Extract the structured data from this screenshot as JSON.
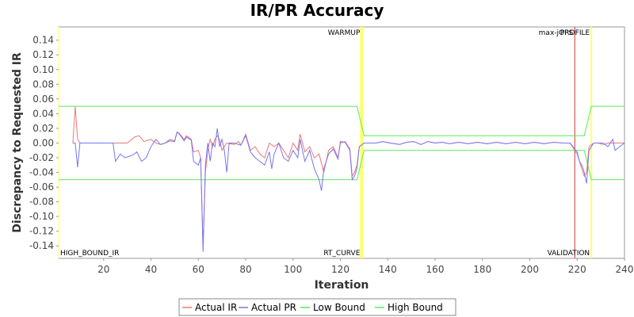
{
  "chart_data": {
    "type": "line",
    "title": "IR/PR Accuracy",
    "xlabel": "Iteration",
    "ylabel": "Discrepancy to Requested IR",
    "xlim": [
      1,
      240
    ],
    "ylim": [
      -0.157,
      0.158
    ],
    "x_ticks": [
      20,
      40,
      60,
      80,
      100,
      120,
      140,
      160,
      180,
      200,
      220,
      240
    ],
    "y_ticks": [
      0.14,
      0.12,
      0.1,
      0.08,
      0.06,
      0.04,
      0.02,
      0.0,
      -0.02,
      -0.04,
      -0.06,
      -0.08,
      -0.1,
      -0.12,
      -0.14
    ],
    "y_tick_labels": [
      "0.14",
      "0.12",
      "0.10",
      "0.08",
      "0.06",
      "0.04",
      "0.02",
      "0.00",
      "-0.02",
      "-0.04",
      "-0.06",
      "-0.08",
      "-0.10",
      "-0.12",
      "-0.14"
    ],
    "grid": "off",
    "legend_position": "bottom",
    "series": [
      {
        "name": "Actual IR",
        "color": "#ee7777",
        "points": [
          [
            7,
            0
          ],
          [
            8,
            0.05
          ],
          [
            9,
            0.005
          ],
          [
            10,
            0
          ],
          [
            24,
            0
          ],
          [
            25,
            0
          ],
          [
            30,
            0
          ],
          [
            33,
            0.008
          ],
          [
            35,
            0.01
          ],
          [
            37,
            0.002
          ],
          [
            40,
            0.005
          ],
          [
            42,
            0
          ],
          [
            44,
            -0.002
          ],
          [
            46,
            0
          ],
          [
            48,
            0.005
          ],
          [
            50,
            0.003
          ],
          [
            51,
            0.015
          ],
          [
            52,
            0.013
          ],
          [
            54,
            0.005
          ],
          [
            55,
            0.01
          ],
          [
            57,
            0.005
          ],
          [
            58,
            -0.012
          ],
          [
            60,
            -0.01
          ],
          [
            61,
            -0.02
          ],
          [
            62,
            -0.14
          ],
          [
            63,
            -0.04
          ],
          [
            64,
            -0.01
          ],
          [
            65,
            0.005
          ],
          [
            66,
            -0.005
          ],
          [
            67,
            0.005
          ],
          [
            68,
            0.01
          ],
          [
            69,
            0.005
          ],
          [
            70,
            -0.01
          ],
          [
            72,
            0
          ],
          [
            75,
            -0.002
          ],
          [
            77,
            0.002
          ],
          [
            78,
            -0.003
          ],
          [
            80,
            0.012
          ],
          [
            82,
            -0.01
          ],
          [
            84,
            -0.005
          ],
          [
            86,
            -0.015
          ],
          [
            88,
            -0.02
          ],
          [
            90,
            0
          ],
          [
            92,
            -0.005
          ],
          [
            94,
            0
          ],
          [
            96,
            -0.01
          ],
          [
            98,
            -0.02
          ],
          [
            100,
            0
          ],
          [
            102,
            -0.01
          ],
          [
            103,
            0.012
          ],
          [
            105,
            -0.012
          ],
          [
            107,
            -0.005
          ],
          [
            109,
            -0.02
          ],
          [
            111,
            -0.015
          ],
          [
            113,
            -0.04
          ],
          [
            115,
            -0.01
          ],
          [
            117,
            -0.005
          ],
          [
            119,
            -0.02
          ],
          [
            120,
            0
          ],
          [
            122,
            0.002
          ],
          [
            124,
            -0.008
          ],
          [
            125,
            -0.045
          ],
          [
            126,
            -0.04
          ],
          [
            127,
            -0.03
          ],
          [
            128,
            -0.005
          ],
          [
            130,
            0
          ],
          [
            135,
            0
          ],
          [
            138,
            0.002
          ],
          [
            141,
            0
          ],
          [
            145,
            -0.002
          ],
          [
            148,
            0.001
          ],
          [
            151,
            0.002
          ],
          [
            154,
            -0.002
          ],
          [
            157,
            0.002
          ],
          [
            160,
            0
          ],
          [
            163,
            0.001
          ],
          [
            166,
            -0.001
          ],
          [
            170,
            0.001
          ],
          [
            174,
            -0.001
          ],
          [
            178,
            0.001
          ],
          [
            182,
            -0.001
          ],
          [
            186,
            0.001
          ],
          [
            190,
            -0.001
          ],
          [
            194,
            0.001
          ],
          [
            198,
            -0.001
          ],
          [
            202,
            0.001
          ],
          [
            206,
            -0.001
          ],
          [
            210,
            0.001
          ],
          [
            214,
            0
          ],
          [
            217,
            0
          ],
          [
            219,
            -0.01
          ],
          [
            220,
            -0.015
          ],
          [
            221,
            -0.025
          ],
          [
            222,
            -0.035
          ],
          [
            223,
            -0.045
          ],
          [
            224,
            -0.04
          ],
          [
            225,
            -0.005
          ],
          [
            227,
            0
          ],
          [
            229,
            0
          ],
          [
            231,
            -0.002
          ],
          [
            233,
            0
          ],
          [
            235,
            0
          ],
          [
            237,
            0
          ],
          [
            239,
            0
          ],
          [
            240,
            0
          ]
        ]
      },
      {
        "name": "Actual PR",
        "color": "#7777ee",
        "points": [
          [
            7,
            0
          ],
          [
            8,
            0
          ],
          [
            9,
            -0.033
          ],
          [
            10,
            0
          ],
          [
            24,
            0
          ],
          [
            25,
            -0.025
          ],
          [
            27,
            -0.015
          ],
          [
            29,
            -0.02
          ],
          [
            31,
            -0.018
          ],
          [
            33,
            -0.015
          ],
          [
            34,
            -0.012
          ],
          [
            36,
            -0.025
          ],
          [
            38,
            -0.02
          ],
          [
            40,
            -0.005
          ],
          [
            42,
            0.005
          ],
          [
            44,
            -0.002
          ],
          [
            46,
            0
          ],
          [
            48,
            0.003
          ],
          [
            50,
            0.002
          ],
          [
            51,
            0.015
          ],
          [
            52,
            0.012
          ],
          [
            54,
            0.003
          ],
          [
            55,
            0.008
          ],
          [
            57,
            0.004
          ],
          [
            58,
            -0.025
          ],
          [
            60,
            -0.03
          ],
          [
            61,
            -0.02
          ],
          [
            62,
            -0.148
          ],
          [
            63,
            -0.03
          ],
          [
            64,
            0
          ],
          [
            65,
            -0.025
          ],
          [
            66,
            0
          ],
          [
            67,
            -0.005
          ],
          [
            68,
            0.02
          ],
          [
            69,
            -0.005
          ],
          [
            70,
            0.005
          ],
          [
            71,
            -0.01
          ],
          [
            72,
            -0.04
          ],
          [
            73,
            0
          ],
          [
            75,
            0
          ],
          [
            77,
            -0.002
          ],
          [
            78,
            -0.003
          ],
          [
            80,
            0.01
          ],
          [
            82,
            -0.012
          ],
          [
            84,
            -0.02
          ],
          [
            86,
            -0.025
          ],
          [
            88,
            -0.03
          ],
          [
            90,
            -0.012
          ],
          [
            91,
            -0.035
          ],
          [
            92,
            -0.015
          ],
          [
            94,
            0
          ],
          [
            96,
            -0.02
          ],
          [
            98,
            -0.025
          ],
          [
            100,
            -0.01
          ],
          [
            102,
            -0.02
          ],
          [
            103,
            0.005
          ],
          [
            105,
            -0.025
          ],
          [
            107,
            -0.01
          ],
          [
            109,
            -0.035
          ],
          [
            111,
            -0.05
          ],
          [
            112,
            -0.065
          ],
          [
            113,
            -0.035
          ],
          [
            115,
            -0.015
          ],
          [
            117,
            -0.008
          ],
          [
            119,
            -0.022
          ],
          [
            120,
            0.002
          ],
          [
            122,
            0.001
          ],
          [
            124,
            -0.01
          ],
          [
            125,
            -0.05
          ],
          [
            126,
            -0.045
          ],
          [
            127,
            -0.035
          ],
          [
            128,
            -0.005
          ],
          [
            130,
            0
          ],
          [
            135,
            0
          ],
          [
            138,
            0.002
          ],
          [
            141,
            0
          ],
          [
            145,
            -0.002
          ],
          [
            148,
            0.001
          ],
          [
            151,
            0.002
          ],
          [
            154,
            -0.002
          ],
          [
            157,
            0.002
          ],
          [
            160,
            0
          ],
          [
            163,
            0.001
          ],
          [
            166,
            -0.001
          ],
          [
            170,
            0.001
          ],
          [
            174,
            -0.001
          ],
          [
            178,
            0.001
          ],
          [
            182,
            -0.001
          ],
          [
            186,
            0.001
          ],
          [
            190,
            -0.001
          ],
          [
            194,
            0.001
          ],
          [
            198,
            -0.001
          ],
          [
            202,
            0.001
          ],
          [
            206,
            -0.001
          ],
          [
            210,
            0.001
          ],
          [
            214,
            0
          ],
          [
            217,
            0
          ],
          [
            219,
            -0.008
          ],
          [
            220,
            -0.012
          ],
          [
            221,
            -0.025
          ],
          [
            222,
            -0.03
          ],
          [
            223,
            -0.04
          ],
          [
            224,
            -0.055
          ],
          [
            225,
            -0.01
          ],
          [
            227,
            0
          ],
          [
            229,
            0
          ],
          [
            231,
            0
          ],
          [
            233,
            -0.005
          ],
          [
            235,
            0.005
          ],
          [
            236,
            -0.01
          ],
          [
            238,
            -0.005
          ],
          [
            240,
            0
          ]
        ]
      },
      {
        "name": "Low Bound",
        "color": "#55ee55",
        "points": [
          [
            1,
            -0.05
          ],
          [
            127,
            -0.05
          ],
          [
            130,
            -0.01
          ],
          [
            223,
            -0.01
          ],
          [
            226,
            -0.05
          ],
          [
            240,
            -0.05
          ]
        ]
      },
      {
        "name": "High Bound",
        "color": "#55ee55",
        "points": [
          [
            1,
            0.05
          ],
          [
            127,
            0.05
          ],
          [
            130,
            0.01
          ],
          [
            223,
            0.01
          ],
          [
            226,
            0.05
          ],
          [
            240,
            0.05
          ]
        ]
      }
    ],
    "markers": [
      {
        "x": 1,
        "label": "HIGH_BOUND_IR",
        "label_pos": "bottom",
        "color": "#ffff66",
        "width": 1
      },
      {
        "x": 129,
        "label": "WARMUP",
        "label_pos": "top",
        "color": "#ffff66",
        "width": 4
      },
      {
        "x": 129,
        "label": "RT_CURVE",
        "label_pos": "bottom",
        "color": "#ffff66",
        "width": 4
      },
      {
        "x": 219,
        "label": "max-jOPS",
        "label_pos": "top",
        "color": "#cc3333",
        "width": 1
      },
      {
        "x": 226,
        "label": "PROFILE",
        "label_pos": "top",
        "color": "#ffff66",
        "width": 2
      },
      {
        "x": 226,
        "label": "VALIDATION",
        "label_pos": "bottom",
        "color": "#ffff66",
        "width": 2
      }
    ]
  }
}
